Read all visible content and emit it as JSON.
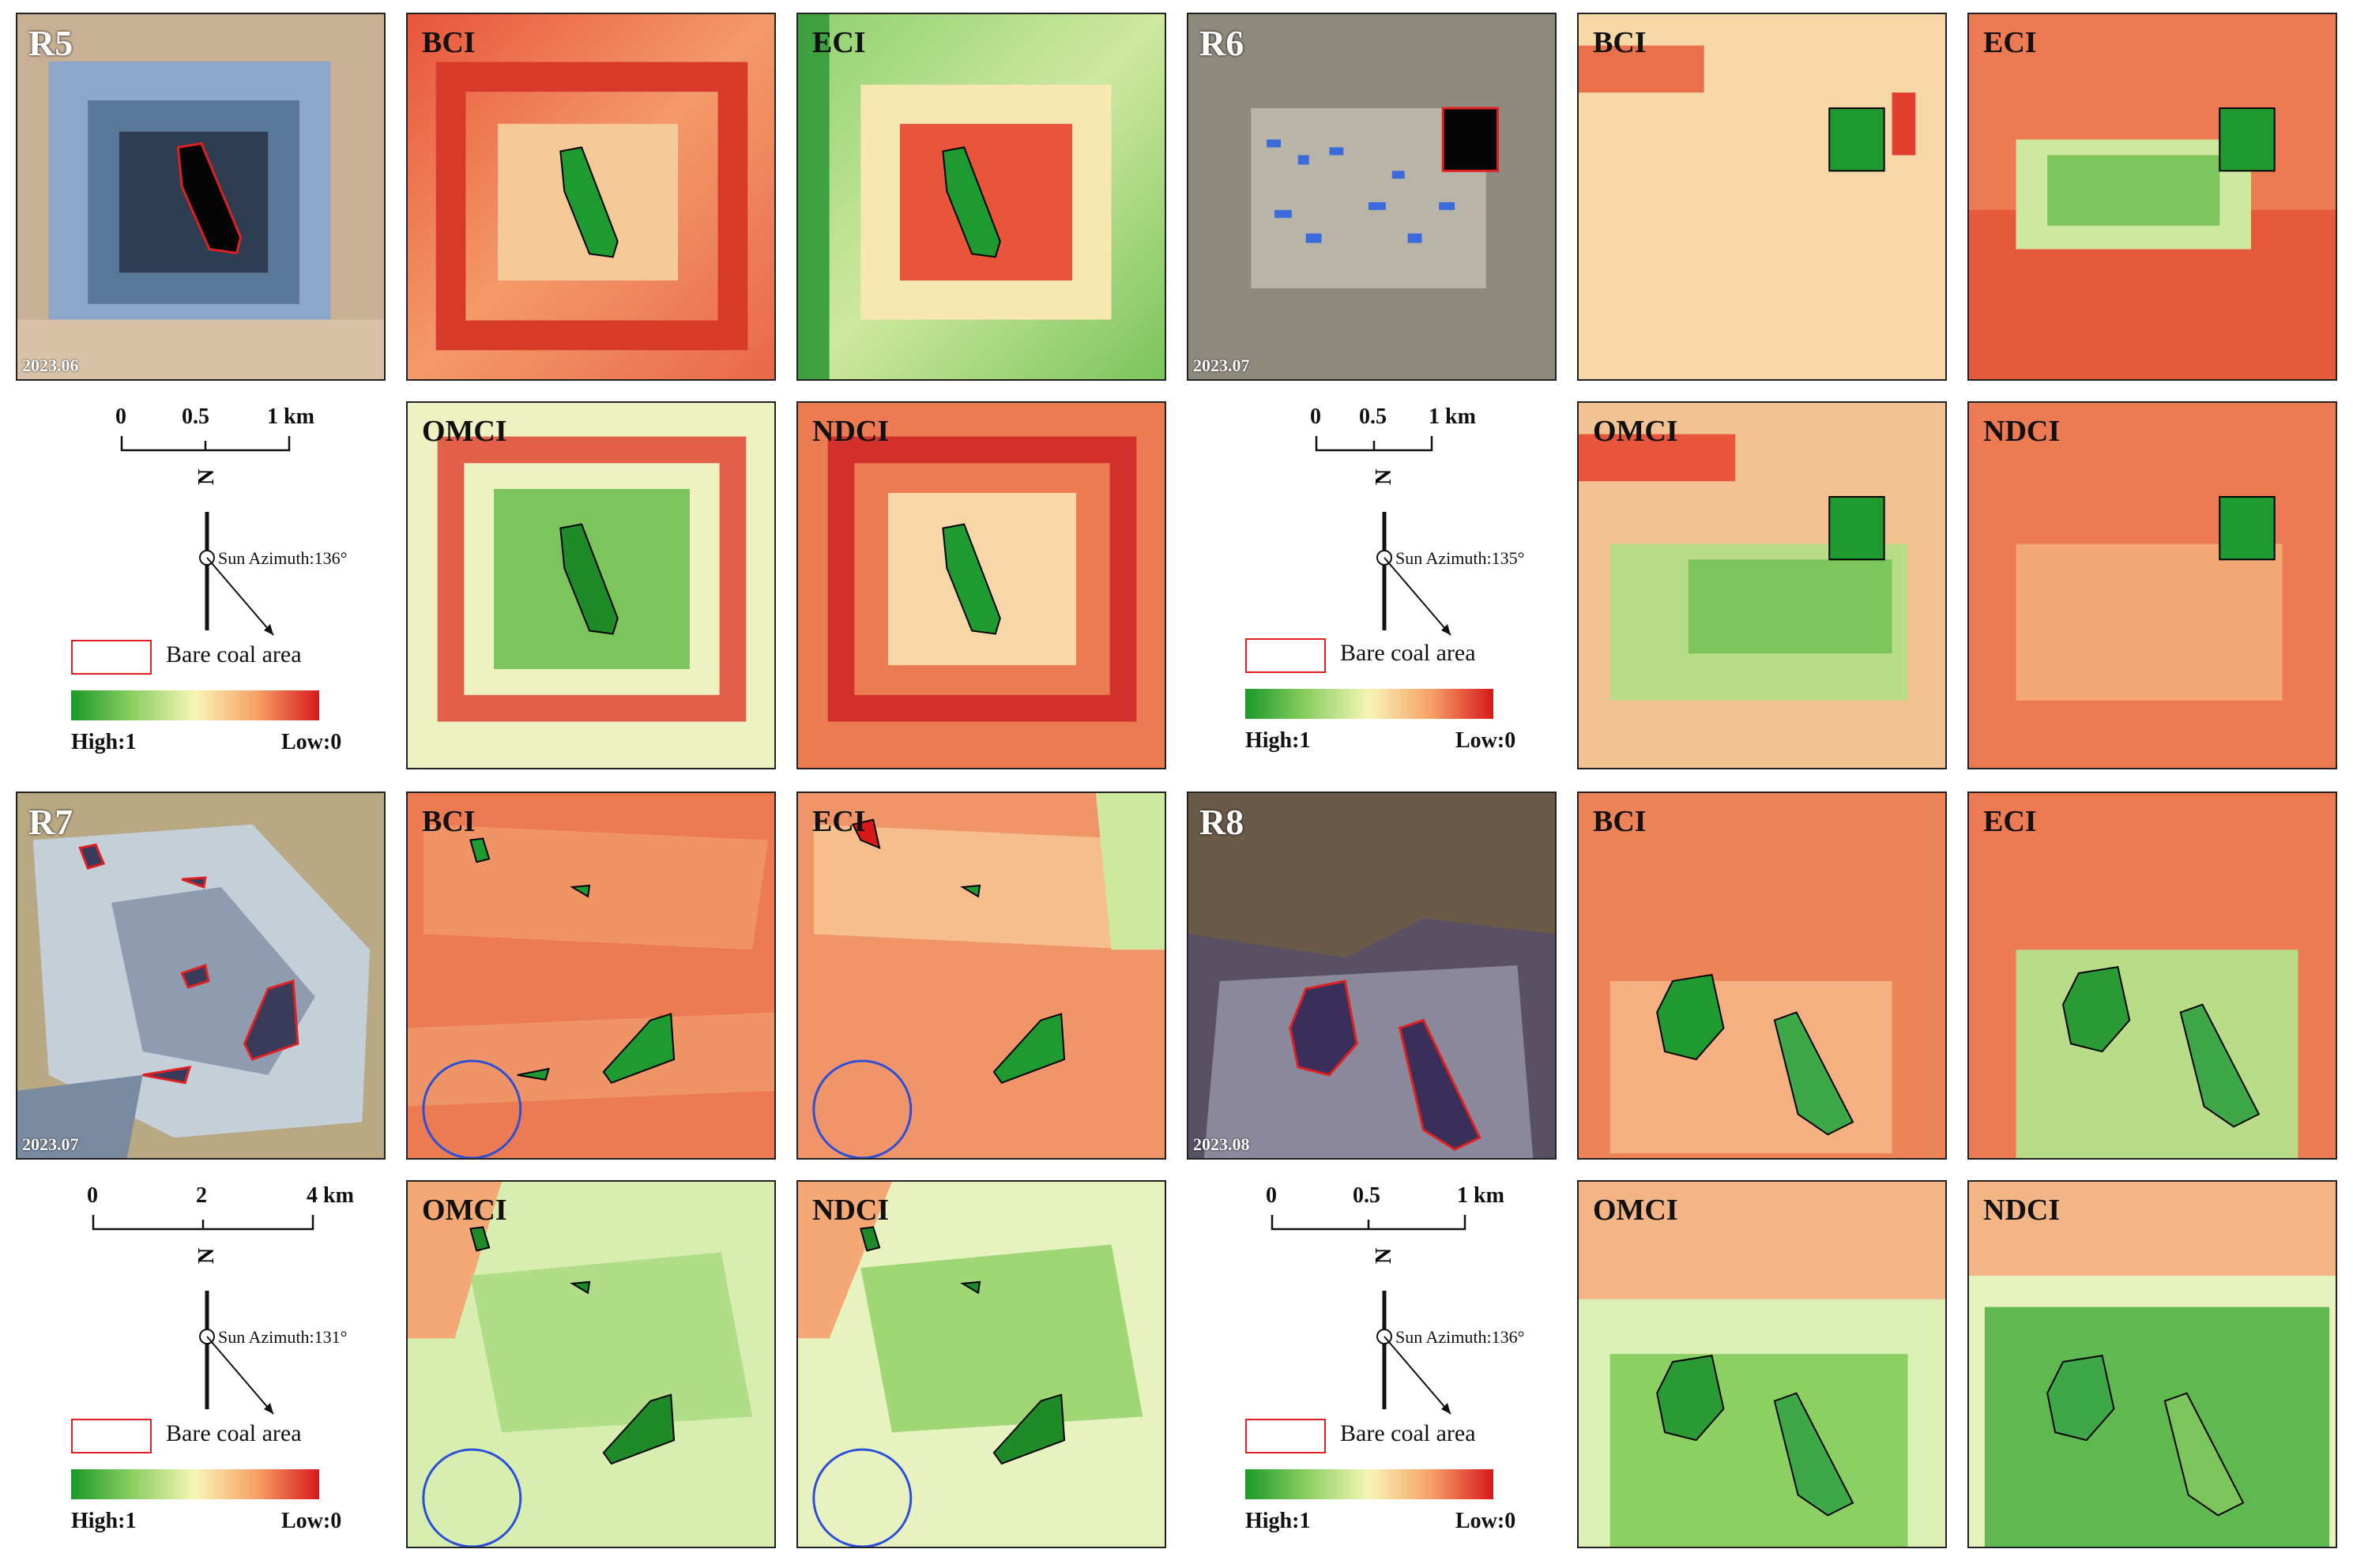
{
  "colors": {
    "high": "#1a9a2a",
    "mid": "#f7f5b8",
    "low": "#d7191c",
    "outline_red": "#e02020",
    "circle_blue": "#2a4fd8"
  },
  "legend_common": {
    "bare_coal": "Bare coal area",
    "high": "High:1",
    "low": "Low:0",
    "north": "N"
  },
  "indices": [
    "BCI",
    "ECI",
    "OMCI",
    "NDCI"
  ],
  "regions": [
    {
      "id": "R5",
      "date": "2023.06",
      "scale": [
        "0",
        "0.5",
        "1 km"
      ],
      "sun": "Sun Azimuth:136°"
    },
    {
      "id": "R6",
      "date": "2023.07",
      "scale": [
        "0",
        "0.5",
        "1 km"
      ],
      "sun": "Sun Azimuth:135°"
    },
    {
      "id": "R7",
      "date": "2023.07",
      "scale": [
        "0",
        "2",
        "4 km"
      ],
      "sun": "Sun Azimuth:131°"
    },
    {
      "id": "R8",
      "date": "2023.08",
      "scale": [
        "0",
        "0.5",
        "1 km"
      ],
      "sun": "Sun Azimuth:136°"
    }
  ]
}
